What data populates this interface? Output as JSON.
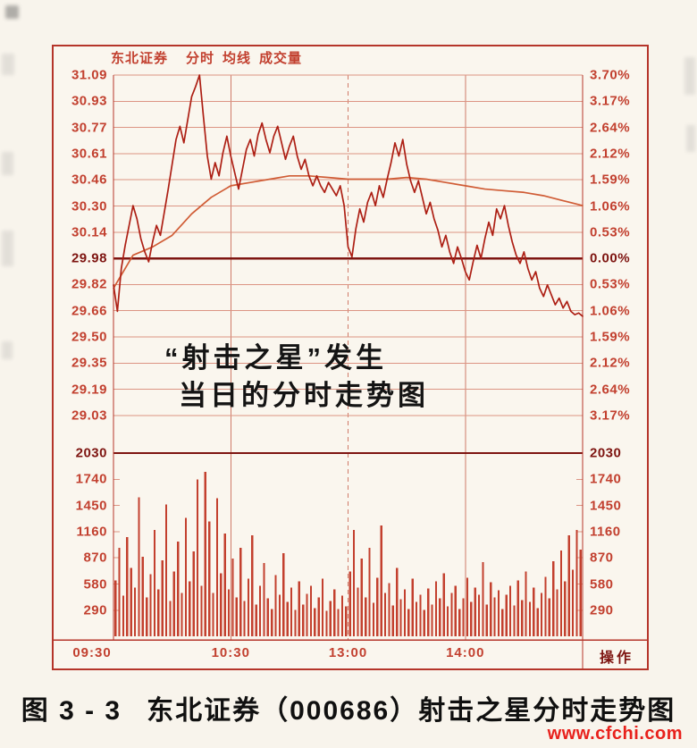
{
  "colors": {
    "accent_red": "#c0392b",
    "price_line": "#ad1f14",
    "average_line": "#d05c35",
    "volume_bar": "#c3402e",
    "grid_line": "#dc9483",
    "vertical_grid": "#cf7a68",
    "bold_line": "#7e1511",
    "frame": "#b5352a",
    "label_red": "#c2402f",
    "url_red": "#e8211c"
  },
  "header": {
    "items": [
      "东北证券",
      "分时",
      "均线",
      "成交量"
    ]
  },
  "annotation": {
    "line1": "“射击之星”发生",
    "line2": "当日的分时走势图"
  },
  "caption": {
    "label": "图 3 - 3",
    "text": "东北证券（000686）射击之星分时走势图"
  },
  "footer": {
    "action_label": "操作",
    "url": "www.cfchi.com"
  },
  "chart_data": {
    "type": "line",
    "subtype": "intraday_price_with_volume",
    "title": "东北证券 分时 均线 成交量",
    "price_axis": {
      "max": 31.09,
      "min": 29.03,
      "prev_close": 29.98,
      "prev_close_index": 7,
      "left_labels": [
        "31.09",
        "30.93",
        "30.77",
        "30.61",
        "30.46",
        "30.30",
        "30.14",
        "29.98",
        "29.82",
        "29.66",
        "29.50",
        "29.35",
        "29.19",
        "29.03"
      ],
      "right_labels": [
        "3.70%",
        "3.17%",
        "2.64%",
        "2.12%",
        "1.59%",
        "1.06%",
        "0.53%",
        "0.00%",
        "0.53%",
        "1.06%",
        "1.59%",
        "2.12%",
        "2.64%",
        "3.17%"
      ]
    },
    "volume_axis": {
      "max": 2030,
      "labels": [
        "2030",
        "1740",
        "1450",
        "1160",
        "870",
        "580",
        "290"
      ]
    },
    "x_axis": {
      "total_minutes": 240,
      "ticks": [
        {
          "label": "09:30",
          "minute": 0
        },
        {
          "label": "10:30",
          "minute": 60
        },
        {
          "label": "13:00",
          "minute": 120
        },
        {
          "label": "14:00",
          "minute": 180
        }
      ]
    },
    "price_series": {
      "start_minute": 0,
      "interval_minutes": 2,
      "values": [
        29.82,
        29.66,
        29.92,
        30.06,
        30.18,
        30.3,
        30.22,
        30.1,
        30.02,
        29.96,
        30.08,
        30.18,
        30.12,
        30.26,
        30.4,
        30.55,
        30.7,
        30.78,
        30.68,
        30.82,
        30.96,
        31.02,
        31.09,
        30.84,
        30.6,
        30.46,
        30.56,
        30.48,
        30.62,
        30.72,
        30.6,
        30.5,
        30.4,
        30.52,
        30.64,
        30.7,
        30.6,
        30.73,
        30.8,
        30.7,
        30.62,
        30.72,
        30.78,
        30.68,
        30.58,
        30.66,
        30.72,
        30.6,
        30.52,
        30.58,
        30.48,
        30.42,
        30.48,
        30.42,
        30.38,
        30.44,
        30.4,
        30.36,
        30.42,
        30.3,
        30.05,
        29.99,
        30.16,
        30.28,
        30.2,
        30.32,
        30.38,
        30.3,
        30.42,
        30.35,
        30.46,
        30.56,
        30.68,
        30.6,
        30.7,
        30.55,
        30.45,
        30.38,
        30.45,
        30.35,
        30.25,
        30.32,
        30.22,
        30.15,
        30.05,
        30.12,
        30.02,
        29.95,
        30.05,
        29.98,
        29.9,
        29.85,
        29.96,
        30.06,
        29.98,
        30.1,
        30.2,
        30.12,
        30.28,
        30.22,
        30.3,
        30.18,
        30.08,
        30.0,
        29.95,
        30.02,
        29.92,
        29.85,
        29.9,
        29.8,
        29.75,
        29.82,
        29.76,
        29.7,
        29.74,
        29.68,
        29.72,
        29.66,
        29.64,
        29.65,
        29.63
      ]
    },
    "average_series": {
      "start_minute": 0,
      "interval_minutes": 10,
      "values": [
        29.8,
        30.0,
        30.05,
        30.12,
        30.25,
        30.35,
        30.42,
        30.44,
        30.46,
        30.48,
        30.48,
        30.47,
        30.46,
        30.46,
        30.46,
        30.47,
        30.46,
        30.44,
        30.42,
        30.4,
        30.39,
        30.38,
        30.36,
        30.33,
        30.3
      ]
    },
    "volume_series": {
      "start_minute": 1,
      "interval_minutes": 2,
      "values": [
        620,
        980,
        450,
        1100,
        760,
        540,
        1542,
        880,
        430,
        690,
        1180,
        520,
        840,
        1460,
        390,
        720,
        1050,
        480,
        1310,
        610,
        940,
        1740,
        560,
        1820,
        1270,
        480,
        1530,
        700,
        1140,
        520,
        860,
        430,
        980,
        390,
        640,
        1120,
        350,
        560,
        810,
        420,
        300,
        680,
        460,
        920,
        380,
        540,
        290,
        610,
        350,
        470,
        560,
        310,
        430,
        640,
        280,
        390,
        520,
        300,
        450,
        330,
        720,
        1180,
        540,
        860,
        430,
        980,
        370,
        650,
        1230,
        480,
        590,
        340,
        760,
        410,
        520,
        300,
        640,
        380,
        460,
        290,
        530,
        350,
        610,
        420,
        700,
        330,
        480,
        560,
        300,
        420,
        650,
        380,
        540,
        460,
        820,
        350,
        600,
        430,
        510,
        300,
        460,
        560,
        340,
        620,
        400,
        720,
        380,
        540,
        310,
        480,
        660,
        420,
        830,
        520,
        950,
        610,
        1120,
        740,
        1180,
        960
      ]
    }
  }
}
